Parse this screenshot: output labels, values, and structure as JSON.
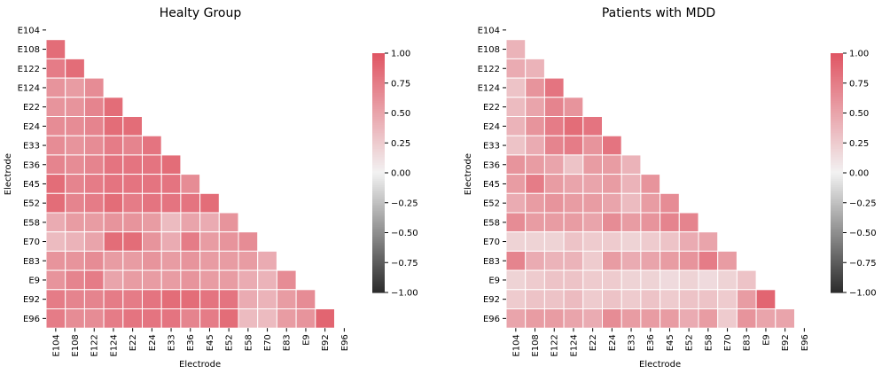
{
  "chart_data": [
    {
      "type": "heatmap",
      "title": "Healty Group",
      "xlabel": "Electrode",
      "ylabel": "Electrode",
      "labels": [
        "E104",
        "E108",
        "E122",
        "E124",
        "E22",
        "E24",
        "E33",
        "E36",
        "E45",
        "E52",
        "E58",
        "E70",
        "E83",
        "E9",
        "E92",
        "E96"
      ],
      "mask": "upper-triangle-and-diagonal",
      "colorbar": {
        "min": -1.0,
        "max": 1.0,
        "ticks": [
          1.0,
          0.75,
          0.5,
          0.25,
          0.0,
          -0.25,
          -0.5,
          -0.75,
          -1.0
        ],
        "tick_labels": [
          "1.00",
          "0.75",
          "0.50",
          "0.25",
          "0.00",
          "−0.25",
          "−0.50",
          "−0.75",
          "−1.00"
        ]
      },
      "colors": {
        "positive": "#e05563",
        "neutral": "#f2f2f2",
        "negative": "#2b2b2b"
      },
      "values": [
        [],
        [
          0.85
        ],
        [
          0.75,
          0.85
        ],
        [
          0.6,
          0.55,
          0.65
        ],
        [
          0.6,
          0.6,
          0.7,
          0.85
        ],
        [
          0.65,
          0.65,
          0.7,
          0.85,
          0.85
        ],
        [
          0.65,
          0.6,
          0.65,
          0.75,
          0.7,
          0.8
        ],
        [
          0.7,
          0.65,
          0.7,
          0.8,
          0.8,
          0.8,
          0.85
        ],
        [
          0.85,
          0.7,
          0.75,
          0.8,
          0.8,
          0.8,
          0.8,
          0.65
        ],
        [
          0.85,
          0.7,
          0.75,
          0.85,
          0.75,
          0.8,
          0.8,
          0.8,
          0.85
        ],
        [
          0.45,
          0.55,
          0.55,
          0.6,
          0.6,
          0.55,
          0.35,
          0.5,
          0.45,
          0.6
        ],
        [
          0.35,
          0.4,
          0.5,
          0.85,
          0.85,
          0.6,
          0.45,
          0.75,
          0.55,
          0.6,
          0.65
        ],
        [
          0.6,
          0.6,
          0.65,
          0.55,
          0.55,
          0.6,
          0.55,
          0.6,
          0.55,
          0.55,
          0.55,
          0.45
        ],
        [
          0.6,
          0.7,
          0.75,
          0.5,
          0.55,
          0.55,
          0.55,
          0.6,
          0.55,
          0.55,
          0.45,
          0.4,
          0.65
        ],
        [
          0.75,
          0.7,
          0.7,
          0.75,
          0.75,
          0.8,
          0.85,
          0.85,
          0.8,
          0.8,
          0.45,
          0.4,
          0.55,
          0.65
        ],
        [
          0.75,
          0.65,
          0.65,
          0.75,
          0.8,
          0.8,
          0.8,
          0.7,
          0.75,
          0.85,
          0.35,
          0.35,
          0.55,
          0.6,
          0.9
        ]
      ]
    },
    {
      "type": "heatmap",
      "title": "Patients with MDD",
      "xlabel": "Electrode",
      "ylabel": "Electrode",
      "labels": [
        "E104",
        "E108",
        "E122",
        "E124",
        "E22",
        "E24",
        "E33",
        "E36",
        "E45",
        "E52",
        "E58",
        "E70",
        "E83",
        "E9",
        "E92",
        "E96"
      ],
      "mask": "upper-triangle-and-diagonal",
      "colorbar": {
        "min": -1.0,
        "max": 1.0,
        "ticks": [
          1.0,
          0.75,
          0.5,
          0.25,
          0.0,
          -0.25,
          -0.5,
          -0.75,
          -1.0
        ],
        "tick_labels": [
          "1.00",
          "0.75",
          "0.50",
          "0.25",
          "0.00",
          "−0.25",
          "−0.50",
          "−0.75",
          "−1.00"
        ]
      },
      "colors": {
        "positive": "#e05563",
        "neutral": "#f2f2f2",
        "negative": "#2b2b2b"
      },
      "values": [
        [],
        [
          0.4
        ],
        [
          0.45,
          0.4
        ],
        [
          0.3,
          0.6,
          0.8
        ],
        [
          0.35,
          0.5,
          0.7,
          0.6
        ],
        [
          0.4,
          0.6,
          0.75,
          0.85,
          0.8
        ],
        [
          0.3,
          0.45,
          0.7,
          0.75,
          0.6,
          0.8
        ],
        [
          0.6,
          0.55,
          0.5,
          0.3,
          0.55,
          0.55,
          0.4
        ],
        [
          0.55,
          0.75,
          0.55,
          0.5,
          0.5,
          0.55,
          0.4,
          0.6
        ],
        [
          0.45,
          0.55,
          0.6,
          0.55,
          0.55,
          0.5,
          0.35,
          0.55,
          0.65
        ],
        [
          0.65,
          0.55,
          0.55,
          0.55,
          0.5,
          0.65,
          0.55,
          0.6,
          0.7,
          0.7
        ],
        [
          0.2,
          0.2,
          0.2,
          0.3,
          0.25,
          0.25,
          0.2,
          0.25,
          0.3,
          0.45,
          0.5
        ],
        [
          0.7,
          0.45,
          0.4,
          0.4,
          0.25,
          0.55,
          0.45,
          0.5,
          0.55,
          0.6,
          0.75,
          0.55
        ],
        [
          0.2,
          0.25,
          0.3,
          0.3,
          0.25,
          0.25,
          0.2,
          0.2,
          0.15,
          0.2,
          0.15,
          0.2,
          0.3
        ],
        [
          0.25,
          0.3,
          0.3,
          0.35,
          0.25,
          0.3,
          0.25,
          0.3,
          0.25,
          0.3,
          0.3,
          0.25,
          0.55,
          0.9
        ],
        [
          0.5,
          0.55,
          0.55,
          0.5,
          0.45,
          0.65,
          0.55,
          0.55,
          0.55,
          0.45,
          0.55,
          0.25,
          0.6,
          0.5,
          0.5
        ]
      ]
    }
  ]
}
